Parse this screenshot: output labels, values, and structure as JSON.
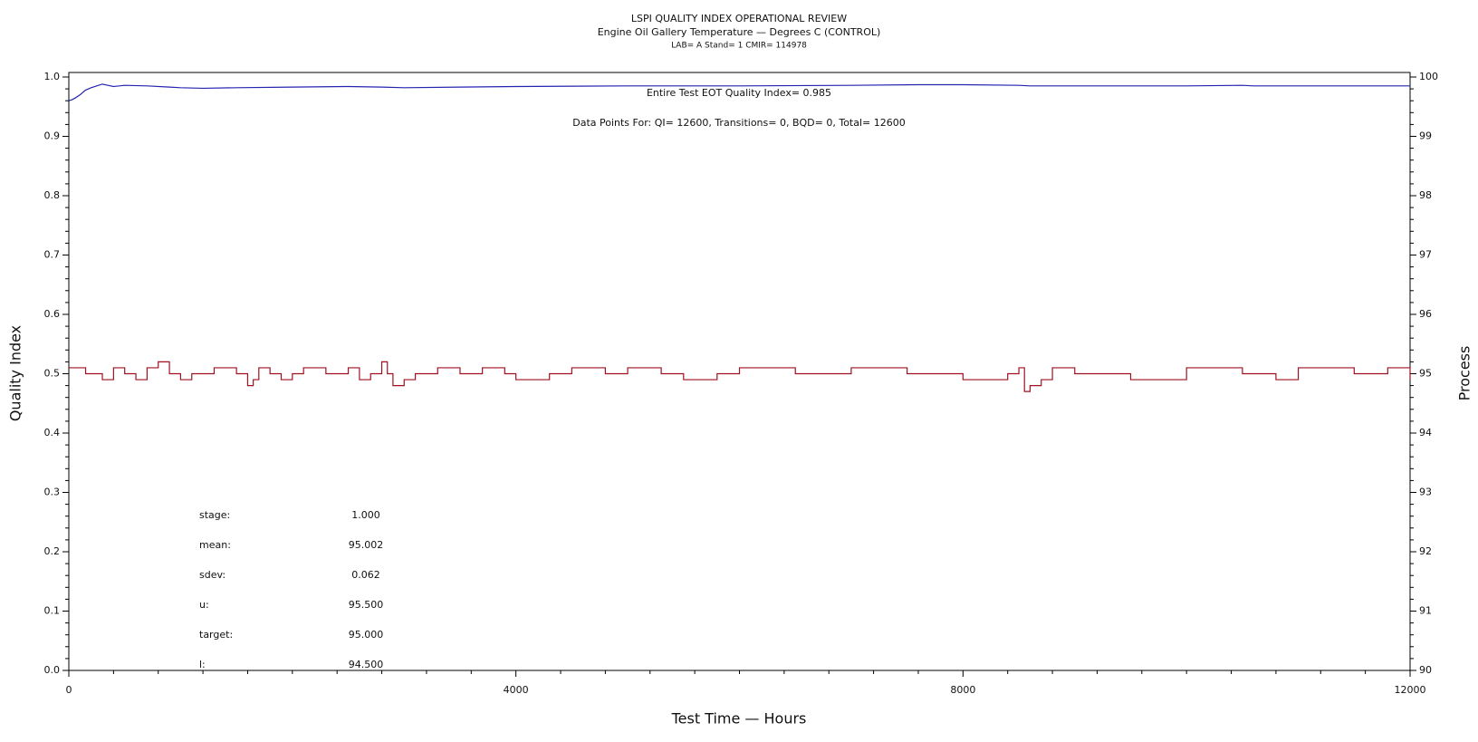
{
  "chart_data": {
    "type": "line",
    "title": "LSPI QUALITY INDEX OPERATIONAL REVIEW",
    "subtitle": "Engine Oil Gallery Temperature — Degrees C (CONTROL)",
    "subtitle2": "LAB= A Stand= 1 CMIR= 114978",
    "annotations": [
      "Entire Test EOT Quality Index=   0.985",
      "Data Points For: QI= 12600, Transitions=     0, BQD=     0, Total= 12600"
    ],
    "stats": [
      {
        "label": "stage:",
        "value": "1.000"
      },
      {
        "label": "mean:",
        "value": "95.002"
      },
      {
        "label": "sdev:",
        "value": "0.062"
      },
      {
        "label": "u:",
        "value": "95.500"
      },
      {
        "label": "target:",
        "value": "95.000"
      },
      {
        "label": "l:",
        "value": "94.500"
      }
    ],
    "x_label": "Test Time — Hours",
    "y_label": "Quality Index",
    "y2_label": "Process",
    "xlim": [
      0,
      12000
    ],
    "xticks": [
      0,
      4000,
      8000,
      12000
    ],
    "ylim": [
      0,
      1
    ],
    "yticks": [
      {
        "value": 0,
        "label": "0.0"
      },
      {
        "value": 0.1,
        "label": "0.1"
      },
      {
        "value": 0.2,
        "label": "0.2"
      },
      {
        "value": 0.3,
        "label": "0.3"
      },
      {
        "value": 0.4,
        "label": "0.4"
      },
      {
        "value": 0.5,
        "label": "0.5"
      },
      {
        "value": 0.6,
        "label": "0.6"
      },
      {
        "value": 0.7,
        "label": "0.7"
      },
      {
        "value": 0.8,
        "label": "0.8"
      },
      {
        "value": 0.9,
        "label": "0.9"
      },
      {
        "value": 1,
        "label": "1.0"
      }
    ],
    "y2lim": [
      90,
      100
    ],
    "y2ticks": [
      90,
      91,
      92,
      93,
      94,
      95,
      96,
      97,
      98,
      99,
      100
    ],
    "series": [
      {
        "color": "#2424b0",
        "axis": "y",
        "step": false,
        "x": [
          0,
          30,
          60,
          100,
          150,
          200,
          250,
          300,
          350,
          400,
          500,
          700,
          900,
          1000,
          1200,
          1500,
          2000,
          2500,
          2800,
          3000,
          3500,
          4000,
          5000,
          6000,
          7000,
          7600,
          8000,
          8500,
          8600,
          9000,
          10000,
          10500,
          10600,
          11000,
          12000
        ],
        "values": [
          0.96,
          0.962,
          0.965,
          0.97,
          0.978,
          0.982,
          0.985,
          0.988,
          0.986,
          0.984,
          0.986,
          0.985,
          0.983,
          0.982,
          0.981,
          0.982,
          0.983,
          0.984,
          0.983,
          0.982,
          0.983,
          0.984,
          0.985,
          0.985,
          0.986,
          0.987,
          0.987,
          0.986,
          0.985,
          0.985,
          0.985,
          0.986,
          0.985,
          0.985,
          0.985
        ]
      },
      {
        "color": "#a01020",
        "axis": "y2",
        "step": true,
        "x": [
          0,
          150,
          300,
          400,
          500,
          600,
          700,
          800,
          900,
          1000,
          1100,
          1300,
          1500,
          1600,
          1650,
          1700,
          1800,
          1900,
          2000,
          2100,
          2300,
          2500,
          2600,
          2700,
          2800,
          2850,
          2900,
          3000,
          3100,
          3300,
          3500,
          3700,
          3900,
          4000,
          4300,
          4500,
          4800,
          5000,
          5300,
          5500,
          5800,
          6000,
          6500,
          7000,
          7500,
          8000,
          8400,
          8500,
          8550,
          8600,
          8700,
          8800,
          9000,
          9500,
          10000,
          10500,
          10800,
          11000,
          11500,
          11800,
          12000
        ],
        "values": [
          95.1,
          95.0,
          94.9,
          95.1,
          95.0,
          94.9,
          95.1,
          95.2,
          95.0,
          94.9,
          95.0,
          95.1,
          95.0,
          94.8,
          94.9,
          95.1,
          95.0,
          94.9,
          95.0,
          95.1,
          95.0,
          95.1,
          94.9,
          95.0,
          95.2,
          95.0,
          94.8,
          94.9,
          95.0,
          95.1,
          95.0,
          95.1,
          95.0,
          94.9,
          95.0,
          95.1,
          95.0,
          95.1,
          95.0,
          94.9,
          95.0,
          95.1,
          95.0,
          95.1,
          95.0,
          94.9,
          95.0,
          95.1,
          94.7,
          94.8,
          94.9,
          95.1,
          95.0,
          94.9,
          95.1,
          95.0,
          94.9,
          95.1,
          95.0,
          95.1,
          94.9
        ]
      }
    ]
  }
}
